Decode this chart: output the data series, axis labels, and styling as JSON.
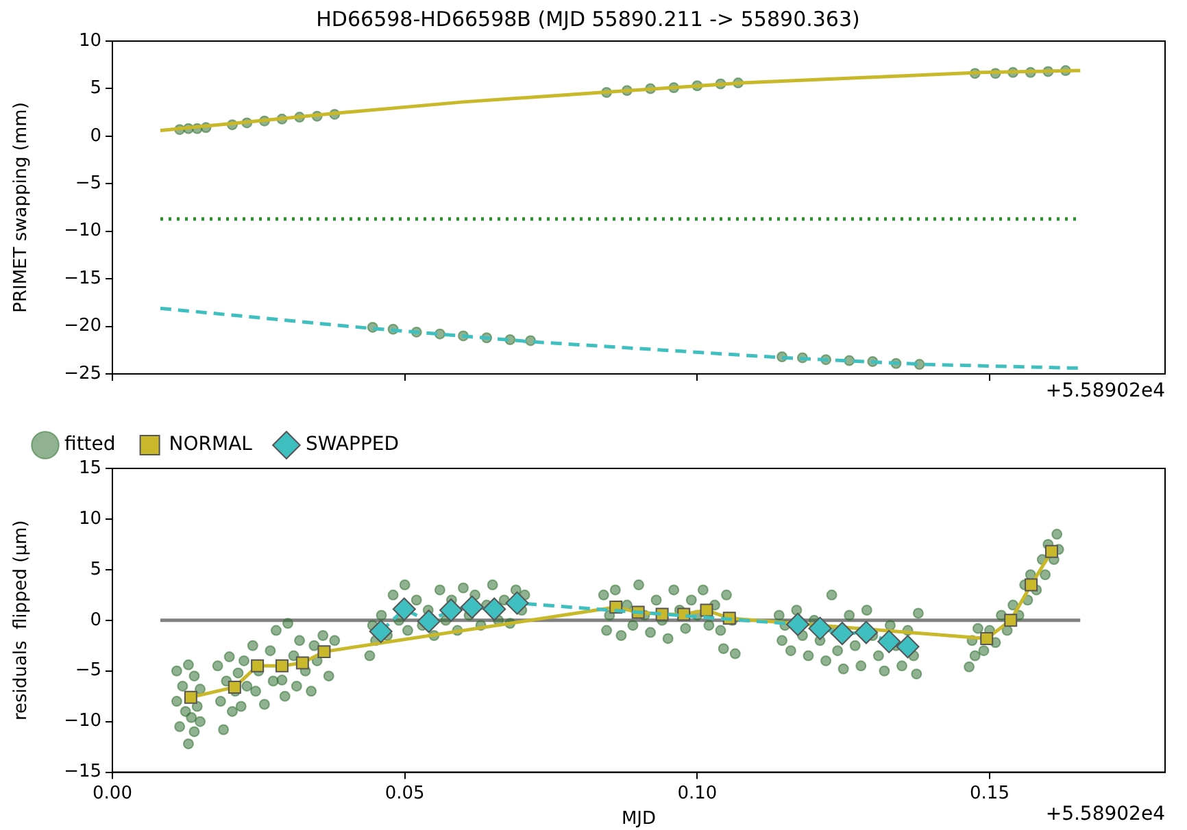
{
  "chart_data": [
    {
      "type": "line",
      "title": "HD66598-HD66598B (MJD 55890.211 -> 55890.363)",
      "ylabel": "PRIMET swapping (mm)",
      "xlim": [
        0,
        0.18
      ],
      "xticks": [
        0,
        0.05,
        0.1,
        0.15
      ],
      "ylim": [
        -25,
        10
      ],
      "yticks": [
        {
          "value": -25,
          "label": "−25"
        },
        {
          "value": -20,
          "label": "−20"
        },
        {
          "value": -15,
          "label": "−15"
        },
        {
          "value": -10,
          "label": "−10"
        },
        {
          "value": -5,
          "label": "−5"
        },
        0,
        5,
        10
      ],
      "tick_labels": "y",
      "grid": false,
      "legend": false,
      "annotations": [
        "+5.58902e4"
      ],
      "series": [
        {
          "type": "scatter",
          "color": "#2f6f2f",
          "marker": "circle",
          "x": [
            0.0115,
            0.013,
            0.0145,
            0.016,
            0.0205,
            0.023,
            0.026,
            0.029,
            0.032,
            0.035,
            0.038,
            0.0845,
            0.088,
            0.092,
            0.096,
            0.1,
            0.104,
            0.107,
            0.1475,
            0.151,
            0.154,
            0.157,
            0.16,
            0.163,
            0.0445,
            0.048,
            0.052,
            0.056,
            0.06,
            0.064,
            0.068,
            0.0715,
            0.1145,
            0.118,
            0.122,
            0.126,
            0.13,
            0.134,
            0.138
          ],
          "values": [
            0.7,
            0.8,
            0.8,
            0.9,
            1.2,
            1.4,
            1.6,
            1.8,
            2.0,
            2.1,
            2.3,
            4.6,
            4.8,
            5.0,
            5.1,
            5.3,
            5.5,
            5.6,
            6.6,
            6.6,
            6.7,
            6.7,
            6.8,
            6.9,
            -20.1,
            -20.3,
            -20.6,
            -20.8,
            -21.0,
            -21.2,
            -21.4,
            -21.5,
            -23.2,
            -23.3,
            -23.5,
            -23.6,
            -23.7,
            -23.9,
            -24.0
          ]
        },
        {
          "color": "#c8b82a",
          "marker": "none",
          "line_style": "solid",
          "x": [
            0.0082,
            0.02,
            0.038,
            0.06,
            0.0836,
            0.1077,
            0.13,
            0.1486,
            0.1655
          ],
          "values": [
            0.6,
            1.3,
            2.4,
            3.6,
            4.6,
            5.6,
            6.2,
            6.7,
            6.9
          ]
        },
        {
          "color": "#2e8b2e",
          "marker": "none",
          "line_style": "dotted",
          "x": [
            0.0082,
            0.1655
          ],
          "values": [
            -8.7,
            -8.7
          ]
        },
        {
          "color": "#3fbfbf",
          "marker": "none",
          "line_style": "dashed",
          "x": [
            0.0082,
            0.044,
            0.0713,
            0.1148,
            0.1389,
            0.1655
          ],
          "values": [
            -18.1,
            -20.2,
            -21.6,
            -23.3,
            -24.0,
            -24.4
          ]
        }
      ]
    },
    {
      "type": "line",
      "xlabel": "MJD",
      "ylabel": "residuals  flipped (μm)",
      "xlim": [
        0,
        0.18
      ],
      "xticks": [
        {
          "value": 0,
          "label": "0.00"
        },
        {
          "value": 0.05,
          "label": "0.05"
        },
        {
          "value": 0.1,
          "label": "0.10"
        },
        {
          "value": 0.15,
          "label": "0.15"
        }
      ],
      "ylim": [
        -15,
        15
      ],
      "yticks": [
        {
          "value": -15,
          "label": "−15"
        },
        {
          "value": -10,
          "label": "−10"
        },
        {
          "value": -5,
          "label": "−5"
        },
        0,
        5,
        10,
        15
      ],
      "grid": false,
      "legend": "top left",
      "annotations": [
        "+5.58902e4"
      ],
      "series": [
        {
          "color": "#808080",
          "marker": "none",
          "line_style": "solid",
          "x": [
            0.0082,
            0.1655
          ],
          "values": [
            0,
            0
          ]
        },
        {
          "name": "fitted",
          "type": "scatter",
          "color": "#2f6f2f",
          "marker": "circle",
          "x": [
            0.011,
            0.011,
            0.0115,
            0.012,
            0.0125,
            0.013,
            0.013,
            0.0135,
            0.014,
            0.014,
            0.0145,
            0.015,
            0.015,
            0.018,
            0.0185,
            0.019,
            0.0195,
            0.02,
            0.0205,
            0.021,
            0.0215,
            0.022,
            0.0225,
            0.023,
            0.024,
            0.0245,
            0.025,
            0.026,
            0.027,
            0.0275,
            0.028,
            0.029,
            0.0295,
            0.03,
            0.031,
            0.0315,
            0.032,
            0.033,
            0.034,
            0.0345,
            0.035,
            0.036,
            0.037,
            0.038,
            0.044,
            0.0445,
            0.045,
            0.046,
            0.047,
            0.048,
            0.049,
            0.05,
            0.0505,
            0.052,
            0.053,
            0.054,
            0.055,
            0.056,
            0.057,
            0.058,
            0.059,
            0.06,
            0.061,
            0.062,
            0.063,
            0.064,
            0.065,
            0.066,
            0.067,
            0.068,
            0.069,
            0.07,
            0.0705,
            0.084,
            0.0845,
            0.085,
            0.086,
            0.087,
            0.088,
            0.089,
            0.09,
            0.091,
            0.092,
            0.093,
            0.094,
            0.095,
            0.096,
            0.097,
            0.098,
            0.099,
            0.1,
            0.101,
            0.102,
            0.103,
            0.104,
            0.1045,
            0.105,
            0.106,
            0.1065,
            0.114,
            0.1145,
            0.115,
            0.116,
            0.117,
            0.118,
            0.119,
            0.12,
            0.121,
            0.122,
            0.123,
            0.1235,
            0.124,
            0.125,
            0.126,
            0.127,
            0.128,
            0.129,
            0.13,
            0.131,
            0.132,
            0.133,
            0.134,
            0.135,
            0.136,
            0.137,
            0.1375,
            0.1378,
            0.1465,
            0.147,
            0.1475,
            0.148,
            0.149,
            0.15,
            0.151,
            0.152,
            0.153,
            0.154,
            0.155,
            0.156,
            0.1565,
            0.157,
            0.158,
            0.159,
            0.1595,
            0.16,
            0.161,
            0.1615,
            0.1618
          ],
          "values": [
            -5.0,
            -8.0,
            -10.5,
            -6.5,
            -9.0,
            -4.4,
            -12.2,
            -9.6,
            -11.0,
            -5.5,
            -8.5,
            -6.8,
            -10.0,
            -4.5,
            -8.0,
            -10.8,
            -6.0,
            -3.6,
            -9.0,
            -7.0,
            -5.2,
            -8.5,
            -4.0,
            -6.5,
            -2.5,
            -7.0,
            -5.0,
            -8.3,
            -3.0,
            -6.0,
            -1.0,
            -5.9,
            -7.5,
            -0.3,
            -3.5,
            -6.5,
            -2.0,
            -5.0,
            -7.0,
            -2.5,
            -4.0,
            -1.5,
            -5.5,
            -2.0,
            -3.5,
            -0.5,
            -2.0,
            0.5,
            -1.5,
            2.5,
            0.0,
            3.5,
            -1.0,
            2.0,
            -0.5,
            1.0,
            -1.5,
            3.0,
            0.0,
            2.0,
            -1.0,
            3.2,
            0.5,
            2.5,
            -0.5,
            1.5,
            3.5,
            0.0,
            2.0,
            -0.3,
            3.0,
            1.0,
            2.5,
            2.5,
            -1.0,
            0.5,
            3.0,
            -1.5,
            1.5,
            -0.5,
            3.5,
            0.5,
            -1.2,
            2.0,
            0.0,
            -1.8,
            3.0,
            1.0,
            -0.8,
            2.0,
            0.5,
            3.0,
            -0.5,
            1.5,
            -1.0,
            -2.8,
            2.5,
            0.0,
            -3.3,
            0.5,
            -2.0,
            -0.5,
            -3.0,
            1.0,
            -1.5,
            -3.5,
            0.0,
            -2.0,
            -4.0,
            2.5,
            -1.0,
            -3.0,
            -4.8,
            0.5,
            -2.5,
            -4.5,
            1.0,
            -1.5,
            -3.5,
            -5.0,
            -0.5,
            -2.5,
            -4.5,
            -1.0,
            -3.5,
            -5.3,
            0.7,
            -4.6,
            -2.0,
            -3.5,
            -0.8,
            -3.0,
            -1.0,
            -2.2,
            0.5,
            -1.0,
            1.5,
            0.5,
            3.5,
            2.0,
            4.5,
            3.0,
            6.0,
            4.5,
            7.5,
            6.0,
            8.5,
            7.0
          ]
        },
        {
          "name": "NORMAL",
          "color": "#c8b82a",
          "marker": "square",
          "line_style": "solid",
          "x": [
            0.0134,
            0.0209,
            0.0248,
            0.029,
            0.0325,
            0.0362,
            0.0861,
            0.0899,
            0.094,
            0.0977,
            0.1016,
            0.1055,
            0.1495,
            0.1536,
            0.1571,
            0.1606
          ],
          "values": [
            -7.6,
            -6.6,
            -4.5,
            -4.5,
            -4.2,
            -3.1,
            1.3,
            0.8,
            0.6,
            0.6,
            1.0,
            0.2,
            -1.8,
            0.0,
            3.5,
            6.8
          ]
        },
        {
          "name": "SWAPPED",
          "color": "#3fbfbf",
          "marker": "diamond",
          "line_style": "dashed",
          "x": [
            0.0459,
            0.0499,
            0.0541,
            0.0579,
            0.0615,
            0.0653,
            0.0692,
            0.1172,
            0.121,
            0.1248,
            0.1289,
            0.1328,
            0.136
          ],
          "values": [
            -1.1,
            1.1,
            -0.1,
            1.0,
            1.3,
            1.1,
            1.7,
            -0.4,
            -0.8,
            -1.3,
            -1.2,
            -2.1,
            -2.6
          ]
        }
      ]
    }
  ]
}
